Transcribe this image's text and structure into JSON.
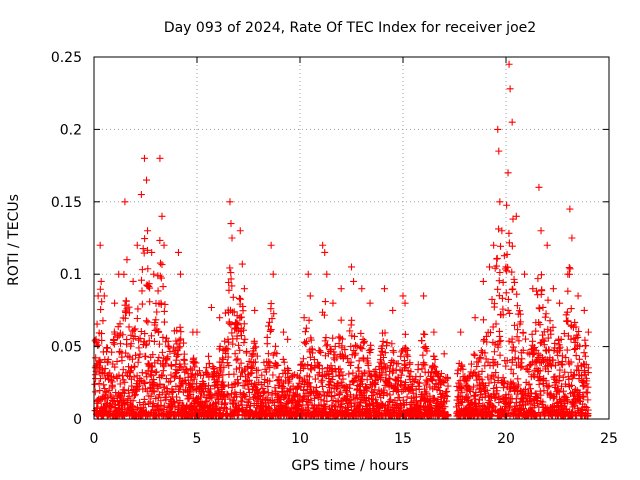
{
  "chart_data": {
    "type": "scatter",
    "title": "Day 093 of 2024, Rate Of TEC Index for receiver joe2",
    "xlabel": "GPS time / hours",
    "ylabel": "ROTI / TECUs",
    "xlim": [
      0,
      25
    ],
    "ylim": [
      0,
      0.25
    ],
    "x_ticks": [
      0,
      5,
      10,
      15,
      20,
      25
    ],
    "x_tick_labels": [
      "0",
      "5",
      "10",
      "15",
      "20",
      "25"
    ],
    "y_ticks": [
      0,
      0.05,
      0.1,
      0.15,
      0.2,
      0.25
    ],
    "y_tick_labels": [
      "0",
      "0.05",
      "0.1",
      "0.15",
      "0.2",
      "0.25"
    ],
    "grid": true,
    "marker": "plus",
    "color": "#ff0000",
    "data_gaps_hours": [
      [
        17.2,
        17.6
      ]
    ],
    "series": [
      {
        "x": [
          0.1,
          0.2,
          0.3,
          0.35,
          0.5,
          1.0,
          1.2,
          1.5,
          1.6,
          1.9,
          2.1,
          2.3,
          2.45,
          2.55,
          2.6,
          2.8,
          2.9,
          3.2,
          3.3,
          3.4,
          4.1,
          4.2,
          4.8,
          5.0,
          5.7,
          6.1,
          6.6,
          6.65,
          6.7,
          7.1,
          7.2,
          7.3,
          7.8,
          8.6,
          8.7,
          9.2,
          9.4,
          10.2,
          10.4,
          10.5,
          11.1,
          11.2,
          11.3,
          11.6,
          12.0,
          12.5,
          12.6,
          13.0,
          13.4,
          14.1,
          14.5,
          15.0,
          15.1,
          16.0,
          16.1,
          16.5,
          17.0,
          17.8,
          18.5,
          18.9,
          19.2,
          19.4,
          19.6,
          19.65,
          19.7,
          19.8,
          20.0,
          20.1,
          20.15,
          20.2,
          20.3,
          20.5,
          20.9,
          21.3,
          21.6,
          21.7,
          22.0,
          22.3,
          22.6,
          23.0,
          23.1,
          23.2,
          23.5,
          23.8,
          24.0
        ],
        "y": [
          0.055,
          0.085,
          0.12,
          0.095,
          0.085,
          0.08,
          0.1,
          0.15,
          0.11,
          0.095,
          0.12,
          0.155,
          0.18,
          0.165,
          0.13,
          0.115,
          0.1,
          0.18,
          0.14,
          0.12,
          0.115,
          0.1,
          0.06,
          0.06,
          0.077,
          0.07,
          0.15,
          0.135,
          0.125,
          0.13,
          0.107,
          0.09,
          0.075,
          0.12,
          0.1,
          0.06,
          0.055,
          0.07,
          0.1,
          0.085,
          0.12,
          0.115,
          0.1,
          0.08,
          0.09,
          0.105,
          0.095,
          0.09,
          0.08,
          0.09,
          0.075,
          0.085,
          0.08,
          0.085,
          0.05,
          0.06,
          0.045,
          0.06,
          0.07,
          0.095,
          0.105,
          0.12,
          0.2,
          0.185,
          0.15,
          0.13,
          0.105,
          0.17,
          0.245,
          0.228,
          0.205,
          0.14,
          0.1,
          0.09,
          0.16,
          0.13,
          0.12,
          0.09,
          0.08,
          0.1,
          0.145,
          0.125,
          0.085,
          0.075,
          0.06
        ]
      }
    ]
  }
}
